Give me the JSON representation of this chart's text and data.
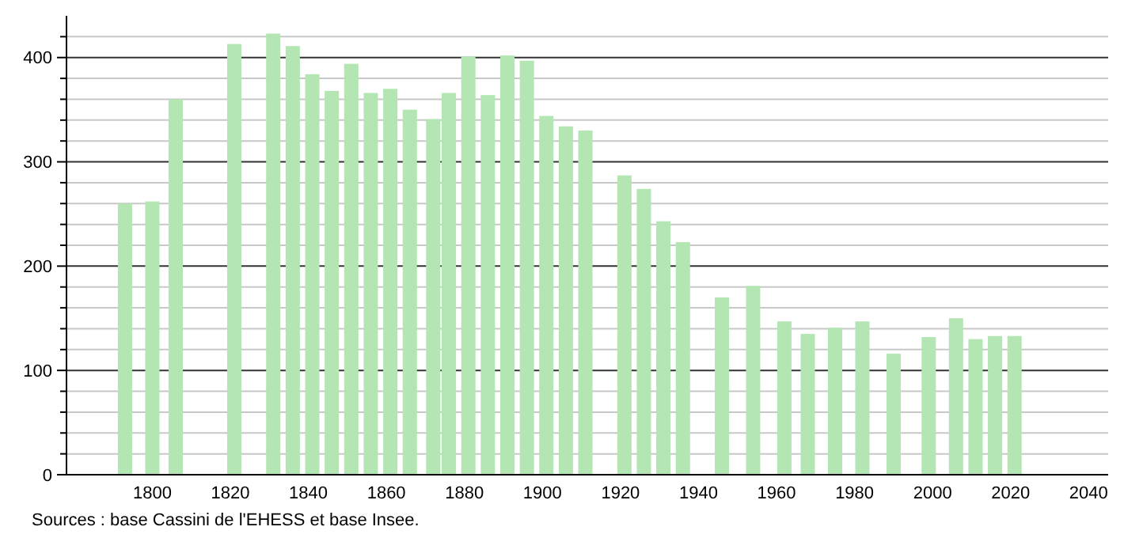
{
  "chart_data": {
    "type": "bar",
    "x": [
      1793,
      1800,
      1806,
      1821,
      1831,
      1836,
      1841,
      1846,
      1851,
      1856,
      1861,
      1866,
      1872,
      1876,
      1881,
      1886,
      1891,
      1896,
      1901,
      1906,
      1911,
      1921,
      1926,
      1931,
      1936,
      1946,
      1954,
      1962,
      1968,
      1975,
      1982,
      1990,
      1999,
      2006,
      2011,
      2016,
      2021
    ],
    "values": [
      260,
      262,
      360,
      413,
      423,
      411,
      384,
      368,
      394,
      366,
      370,
      350,
      341,
      366,
      401,
      364,
      402,
      397,
      344,
      334,
      330,
      287,
      274,
      243,
      223,
      170,
      181,
      147,
      135,
      141,
      147,
      116,
      132,
      150,
      130,
      133,
      133
    ],
    "color": "#b3e6b3",
    "xlim": [
      1778,
      2045
    ],
    "xticks": [
      1800,
      1820,
      1840,
      1860,
      1880,
      1900,
      1920,
      1940,
      1960,
      1980,
      2000,
      2020,
      2040
    ],
    "ylim": [
      0,
      440
    ],
    "yticks": [
      0,
      {
        "value": 20,
        "label": null
      },
      {
        "value": 40,
        "label": null
      },
      {
        "value": 60,
        "label": null
      },
      {
        "value": 80,
        "label": null
      },
      100,
      {
        "value": 120,
        "label": null
      },
      {
        "value": 140,
        "label": null
      },
      {
        "value": 160,
        "label": null
      },
      {
        "value": 180,
        "label": null
      },
      200,
      {
        "value": 220,
        "label": null
      },
      {
        "value": 240,
        "label": null
      },
      {
        "value": 260,
        "label": null
      },
      {
        "value": 280,
        "label": null
      },
      300,
      {
        "value": 320,
        "label": null
      },
      {
        "value": 340,
        "label": null
      },
      {
        "value": 360,
        "label": null
      },
      {
        "value": 380,
        "label": null
      },
      400,
      {
        "value": 420,
        "label": null
      }
    ],
    "grid": true,
    "annotations": [
      "Sources : base Cassini de l'EHESS et base Insee."
    ]
  }
}
